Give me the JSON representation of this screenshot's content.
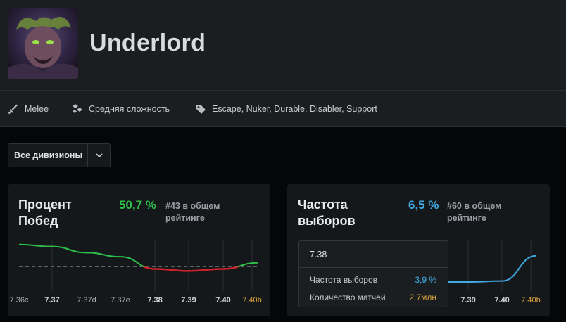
{
  "hero": {
    "name": "Underlord"
  },
  "info": {
    "attack_type": "Melee",
    "complexity": "Средняя сложность",
    "roles": "Escape, Nuker, Durable, Disabler, Support"
  },
  "division_select": {
    "selected": "Все дивизионы"
  },
  "colors": {
    "win_up": "#2fbf4b",
    "win_down": "#d0202c",
    "pick_line": "#41a9e4",
    "pick_value": "#41a9e4",
    "win_value": "#2fbf4b",
    "gold": "#d9a23b"
  },
  "win_card": {
    "title_line1": "Процент",
    "title_line2": "Побед",
    "value": "50,7 %",
    "rank_line1": "#43 в общем",
    "rank_line2": "рейтинге"
  },
  "pick_card": {
    "title_line1": "Частота",
    "title_line2": "выборов",
    "value": "6,5 %",
    "rank_line1": "#60 в общем",
    "rank_line2": "рейтинге"
  },
  "tooltip": {
    "patch": "7.38",
    "row1_label": "Частота выборов",
    "row1_value": "3,9 %",
    "row2_label": "Количество матчей",
    "row2_value": "2.7млн"
  },
  "chart_data": [
    {
      "type": "line",
      "x": [
        "7.36c",
        "7.37",
        "7.37d",
        "7.37e",
        "7.38",
        "7.39",
        "7.40",
        "7.40b"
      ],
      "values": [
        51.6,
        51.5,
        51.2,
        51.0,
        50.4,
        50.3,
        50.4,
        50.7
      ],
      "baseline": 50.5,
      "highlighted_x": [
        "7.37",
        "7.38",
        "7.39",
        "7.40"
      ],
      "current_x": "7.40b"
    },
    {
      "type": "line",
      "x": [
        "7.38",
        "7.39",
        "7.40",
        "7.40b"
      ],
      "values": [
        3.9,
        3.9,
        4.0,
        6.5
      ],
      "highlighted_x": [
        "7.38",
        "7.39",
        "7.40"
      ],
      "current_x": "7.40b"
    }
  ]
}
